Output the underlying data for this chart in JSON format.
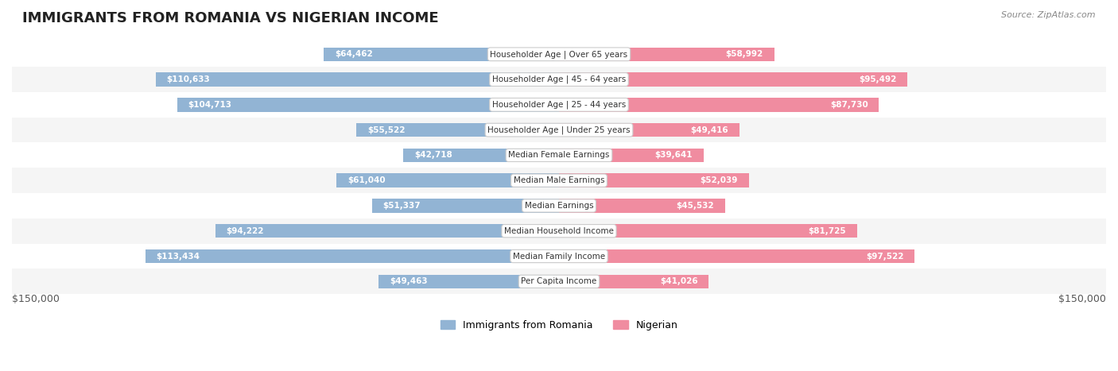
{
  "title": "IMMIGRANTS FROM ROMANIA VS NIGERIAN INCOME",
  "source": "Source: ZipAtlas.com",
  "categories": [
    "Per Capita Income",
    "Median Family Income",
    "Median Household Income",
    "Median Earnings",
    "Median Male Earnings",
    "Median Female Earnings",
    "Householder Age | Under 25 years",
    "Householder Age | 25 - 44 years",
    "Householder Age | 45 - 64 years",
    "Householder Age | Over 65 years"
  ],
  "romania_values": [
    49463,
    113434,
    94222,
    51337,
    61040,
    42718,
    55522,
    104713,
    110633,
    64462
  ],
  "nigerian_values": [
    41026,
    97522,
    81725,
    45532,
    52039,
    39641,
    49416,
    87730,
    95492,
    58992
  ],
  "romania_labels": [
    "$49,463",
    "$113,434",
    "$94,222",
    "$51,337",
    "$61,040",
    "$42,718",
    "$55,522",
    "$104,713",
    "$110,633",
    "$64,462"
  ],
  "nigerian_labels": [
    "$41,026",
    "$97,522",
    "$81,725",
    "$45,532",
    "$52,039",
    "$39,641",
    "$49,416",
    "$87,730",
    "$95,492",
    "$58,992"
  ],
  "romania_color": "#92b4d4",
  "nigerian_color": "#f08ca0",
  "romania_label_color_inside": "#ffffff",
  "romania_label_color_outside": "#555555",
  "nigerian_label_color_inside": "#ffffff",
  "nigerian_label_color_outside": "#555555",
  "bar_height": 0.55,
  "xlim": 150000,
  "bg_color": "#ffffff",
  "row_colors": [
    "#f5f5f5",
    "#ffffff"
  ],
  "legend_romania": "Immigrants from Romania",
  "legend_nigerian": "Nigerian",
  "xlabel_left": "$150,000",
  "xlabel_right": "$150,000"
}
